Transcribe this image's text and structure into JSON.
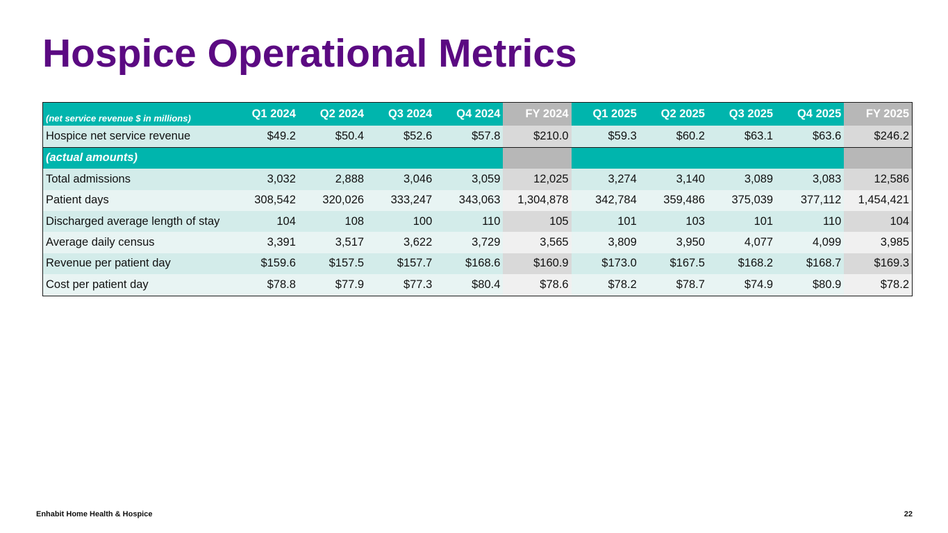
{
  "title": "Hospice Operational Metrics",
  "table": {
    "header": {
      "lead": "(net service revenue $ in millions)",
      "columns": [
        "Q1 2024",
        "Q2 2024",
        "Q3 2024",
        "Q4 2024",
        "FY 2024",
        "Q1 2025",
        "Q2 2025",
        "Q3 2025",
        "Q4 2025",
        "FY 2025"
      ]
    },
    "revenue_row": {
      "label": "Hospice net service revenue",
      "values": [
        "$49.2",
        "$50.4",
        "$52.6",
        "$57.8",
        "$210.0",
        "$59.3",
        "$60.2",
        "$63.1",
        "$63.6",
        "$246.2"
      ]
    },
    "section_label": "(actual amounts)",
    "rows": [
      {
        "label": "Total admissions",
        "values": [
          "3,032",
          "2,888",
          "3,046",
          "3,059",
          "12,025",
          "3,274",
          "3,140",
          "3,089",
          "3,083",
          "12,586"
        ]
      },
      {
        "label": "Patient days",
        "values": [
          "308,542",
          "320,026",
          "333,247",
          "343,063",
          "1,304,878",
          "342,784",
          "359,486",
          "375,039",
          "377,112",
          "1,454,421"
        ]
      },
      {
        "label": "Discharged average length of stay",
        "values": [
          "104",
          "108",
          "100",
          "110",
          "105",
          "101",
          "103",
          "101",
          "110",
          "104"
        ]
      },
      {
        "label": "Average daily census",
        "values": [
          "3,391",
          "3,517",
          "3,622",
          "3,729",
          "3,565",
          "3,809",
          "3,950",
          "4,077",
          "4,099",
          "3,985"
        ]
      },
      {
        "label": "Revenue per patient day",
        "values": [
          "$159.6",
          "$157.5",
          "$157.7",
          "$168.6",
          "$160.9",
          "$173.0",
          "$167.5",
          "$168.2",
          "$168.7",
          "$169.3"
        ]
      },
      {
        "label": "Cost per patient day",
        "values": [
          "$78.8",
          "$77.9",
          "$77.3",
          "$80.4",
          "$78.6",
          "$78.2",
          "$78.7",
          "$74.9",
          "$80.9",
          "$78.2"
        ]
      }
    ]
  },
  "footer": {
    "company": "Enhabit Home Health & Hospice",
    "page_number": "22"
  },
  "colors": {
    "title": "#5b0a82",
    "header_teal": "#00b5ad",
    "fy_gray": "#b7b7b7",
    "row_dark": "#d3ecea",
    "row_light": "#e8f4f3"
  }
}
